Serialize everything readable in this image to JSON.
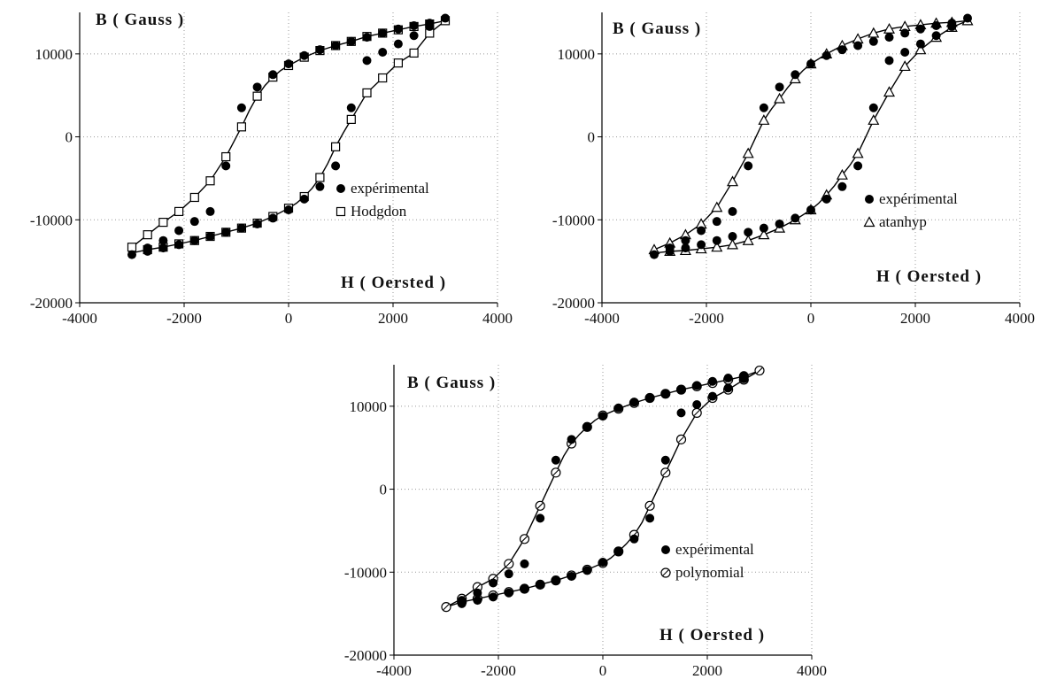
{
  "chart_data": [
    {
      "type": "scatter",
      "xlabel": "H ( Oersted )",
      "ylabel": "B ( Gauss )",
      "xlim": [
        -4000,
        4000
      ],
      "ylim": [
        -20000,
        15000
      ],
      "xticks": [
        -4000,
        -2000,
        0,
        2000,
        4000
      ],
      "yticks": [
        -20000,
        -10000,
        0,
        10000
      ],
      "tick_labels_x": [
        "-4000",
        "-2000",
        "0",
        "2000",
        "4000"
      ],
      "tick_labels_y": [
        "-20000",
        "-10000",
        "0",
        "10000"
      ],
      "grid": true,
      "legend_position": "center-right",
      "series": [
        {
          "name": "expérimental",
          "marker": "filled-circle",
          "x": [
            -3000,
            -2700,
            -2400,
            -2100,
            -1800,
            -1500,
            -1200,
            -900,
            -600,
            -300,
            0,
            300,
            600,
            900,
            1200,
            1500,
            1800,
            2100,
            2400,
            2700,
            3000,
            2700,
            2400,
            2100,
            1800,
            1500,
            1200,
            900,
            600,
            300,
            0,
            -300,
            -600,
            -900,
            -1200,
            -1500,
            -1800,
            -2100,
            -2400,
            -2700
          ],
          "y": [
            -14200,
            -13400,
            -12500,
            -11300,
            -10200,
            -9000,
            -3500,
            3500,
            6000,
            7500,
            8800,
            9800,
            10500,
            11000,
            11500,
            12000,
            12500,
            13000,
            13400,
            13700,
            14300,
            13300,
            12200,
            11200,
            10200,
            9200,
            3500,
            -3500,
            -6000,
            -7500,
            -8800,
            -9800,
            -10500,
            -11000,
            -11500,
            -12000,
            -12500,
            -13000,
            -13400,
            -13800
          ]
        },
        {
          "name": "Hodgdon",
          "marker": "open-square",
          "x": [
            -3000,
            -2700,
            -2400,
            -2100,
            -1800,
            -1500,
            -1200,
            -900,
            -600,
            -300,
            0,
            300,
            600,
            900,
            1200,
            1500,
            1800,
            2100,
            2400,
            2700,
            3000,
            2700,
            2400,
            2100,
            1800,
            1500,
            1200,
            900,
            600,
            300,
            0,
            -300,
            -600,
            -900,
            -1200,
            -1500,
            -1800,
            -2100,
            -2400,
            -2700
          ],
          "y": [
            -13300,
            -11800,
            -10300,
            -9000,
            -7300,
            -5300,
            -2400,
            1200,
            4900,
            7200,
            8600,
            9600,
            10400,
            11000,
            11500,
            12100,
            12500,
            12900,
            13300,
            13600,
            14000,
            12500,
            10100,
            8900,
            7100,
            5300,
            2100,
            -1200,
            -4900,
            -7200,
            -8600,
            -9600,
            -10400,
            -11000,
            -11500,
            -12000,
            -12500,
            -12900,
            -13300,
            -13600
          ]
        }
      ],
      "curves": [
        {
          "x": [
            -3000,
            -2700,
            -2400,
            -2100,
            -1800,
            -1500,
            -1200,
            -1050,
            -900,
            -750,
            -600,
            -450,
            -300,
            -150,
            0,
            300,
            600,
            900,
            1200,
            1500,
            1800,
            2100,
            2400,
            2700,
            3000
          ],
          "y": [
            -13300,
            -11800,
            -10300,
            -9000,
            -7300,
            -5300,
            -2400,
            -600,
            1200,
            3200,
            4900,
            6200,
            7200,
            8000,
            8600,
            9600,
            10400,
            11000,
            11500,
            12100,
            12500,
            12900,
            13300,
            13600,
            14000
          ]
        },
        {
          "x": [
            3000,
            2700,
            2400,
            2100,
            1800,
            1500,
            1200,
            1050,
            900,
            750,
            600,
            450,
            300,
            150,
            0,
            -300,
            -600,
            -900,
            -1200,
            -1500,
            -1800,
            -2100,
            -2400,
            -2700,
            -3000
          ],
          "y": [
            14000,
            12500,
            10100,
            8900,
            7100,
            5300,
            2100,
            500,
            -1200,
            -3200,
            -4900,
            -6200,
            -7200,
            -8000,
            -8600,
            -9600,
            -10400,
            -11000,
            -11500,
            -12000,
            -12500,
            -12900,
            -13300,
            -13600,
            -14000
          ]
        }
      ],
      "legend": [
        "expérimental",
        "Hodgdon"
      ]
    },
    {
      "type": "scatter",
      "xlabel": "H ( Oersted )",
      "ylabel": "B ( Gauss )",
      "xlim": [
        -4000,
        4000
      ],
      "ylim": [
        -20000,
        15000
      ],
      "xticks": [
        -4000,
        -2000,
        0,
        2000,
        4000
      ],
      "yticks": [
        -20000,
        -10000,
        0,
        10000
      ],
      "tick_labels_x": [
        "-4000",
        "-2000",
        "0",
        "2000",
        "4000"
      ],
      "tick_labels_y": [
        "-20000",
        "-10000",
        "0",
        "10000"
      ],
      "grid": true,
      "legend_position": "center-right",
      "series": [
        {
          "name": "expérimental",
          "marker": "filled-circle",
          "x": [
            -3000,
            -2700,
            -2400,
            -2100,
            -1800,
            -1500,
            -1200,
            -900,
            -600,
            -300,
            0,
            300,
            600,
            900,
            1200,
            1500,
            1800,
            2100,
            2400,
            2700,
            3000,
            2700,
            2400,
            2100,
            1800,
            1500,
            1200,
            900,
            600,
            300,
            0,
            -300,
            -600,
            -900,
            -1200,
            -1500,
            -1800,
            -2100,
            -2400,
            -2700
          ],
          "y": [
            -14200,
            -13400,
            -12500,
            -11300,
            -10200,
            -9000,
            -3500,
            3500,
            6000,
            7500,
            8800,
            9800,
            10500,
            11000,
            11500,
            12000,
            12500,
            13000,
            13400,
            13700,
            14300,
            13300,
            12200,
            11200,
            10200,
            9200,
            3500,
            -3500,
            -6000,
            -7500,
            -8800,
            -9800,
            -10500,
            -11000,
            -11500,
            -12000,
            -12500,
            -13000,
            -13400,
            -13800
          ]
        },
        {
          "name": "atanhyp",
          "marker": "open-triangle",
          "x": [
            -3000,
            -2700,
            -2400,
            -2100,
            -1800,
            -1500,
            -1200,
            -900,
            -600,
            -300,
            0,
            300,
            600,
            900,
            1200,
            1500,
            1800,
            2100,
            2400,
            2700,
            3000,
            2700,
            2400,
            2100,
            1800,
            1500,
            1200,
            900,
            600,
            300,
            0,
            -300,
            -600,
            -900,
            -1200,
            -1500,
            -1800,
            -2100,
            -2400,
            -2700
          ],
          "y": [
            -13600,
            -12800,
            -11800,
            -10500,
            -8500,
            -5400,
            -2000,
            2000,
            4600,
            7000,
            8800,
            10000,
            11000,
            11800,
            12500,
            13000,
            13300,
            13500,
            13700,
            13800,
            14000,
            13200,
            12000,
            10500,
            8500,
            5400,
            2000,
            -2000,
            -4600,
            -7000,
            -8800,
            -10000,
            -11000,
            -11800,
            -12500,
            -13000,
            -13300,
            -13500,
            -13700,
            -13800
          ]
        }
      ],
      "curves": [
        {
          "x": [
            -3000,
            -2700,
            -2400,
            -2100,
            -1800,
            -1500,
            -1200,
            -1050,
            -900,
            -750,
            -600,
            -450,
            -300,
            -150,
            0,
            300,
            600,
            900,
            1200,
            1500,
            1800,
            2100,
            2400,
            2700,
            3000
          ],
          "y": [
            -13600,
            -12800,
            -11800,
            -10500,
            -8500,
            -5400,
            -2000,
            0,
            2000,
            3400,
            4600,
            5900,
            7000,
            8000,
            8800,
            10000,
            11000,
            11800,
            12500,
            13000,
            13300,
            13500,
            13700,
            13800,
            14000
          ]
        },
        {
          "x": [
            3000,
            2700,
            2400,
            2100,
            1800,
            1500,
            1200,
            1050,
            900,
            750,
            600,
            450,
            300,
            150,
            0,
            -300,
            -600,
            -900,
            -1200,
            -1500,
            -1800,
            -2100,
            -2400,
            -2700,
            -3000
          ],
          "y": [
            14000,
            13200,
            12000,
            10500,
            8500,
            5400,
            2000,
            0,
            -2000,
            -3400,
            -4600,
            -5900,
            -7000,
            -8000,
            -8800,
            -10000,
            -11000,
            -11800,
            -12500,
            -13000,
            -13300,
            -13500,
            -13700,
            -13800,
            -14000
          ]
        }
      ],
      "legend": [
        "expérimental",
        "atanhyp"
      ]
    },
    {
      "type": "scatter",
      "xlabel": "H ( Oersted )",
      "ylabel": "B ( Gauss )",
      "xlim": [
        -4000,
        4000
      ],
      "ylim": [
        -20000,
        15000
      ],
      "xticks": [
        -4000,
        -2000,
        0,
        2000,
        4000
      ],
      "yticks": [
        -20000,
        -10000,
        0,
        10000
      ],
      "tick_labels_x": [
        "-4000",
        "-2000",
        "0",
        "2000",
        "4000"
      ],
      "tick_labels_y": [
        "-20000",
        "-10000",
        "0",
        "10000"
      ],
      "grid": true,
      "legend_position": "center-right",
      "series": [
        {
          "name": "expérimental",
          "marker": "filled-circle",
          "x": [
            -2700,
            -2400,
            -2100,
            -1800,
            -1500,
            -1200,
            -900,
            -600,
            -300,
            0,
            300,
            600,
            900,
            1200,
            1500,
            1800,
            2100,
            2400,
            2700,
            2700,
            2400,
            2100,
            1800,
            1500,
            1200,
            900,
            600,
            300,
            0,
            -300,
            -600,
            -900,
            -1200,
            -1500,
            -1800,
            -2100,
            -2400,
            -2700
          ],
          "y": [
            -13400,
            -12500,
            -11300,
            -10200,
            -9000,
            -3500,
            3500,
            6000,
            7500,
            8800,
            9800,
            10500,
            11000,
            11500,
            12000,
            12500,
            13000,
            13400,
            13700,
            13300,
            12200,
            11200,
            10200,
            9200,
            3500,
            -3500,
            -6000,
            -7500,
            -8800,
            -9800,
            -10500,
            -11000,
            -11500,
            -12000,
            -12500,
            -13000,
            -13400,
            -13800
          ]
        },
        {
          "name": "polynomial",
          "marker": "open-circle-slash",
          "x": [
            -3000,
            -2700,
            -2400,
            -2100,
            -1800,
            -1500,
            -1200,
            -900,
            -600,
            -300,
            0,
            300,
            600,
            900,
            1200,
            1500,
            1800,
            2100,
            2400,
            2700,
            3000,
            2700,
            2400,
            2100,
            1800,
            1500,
            1200,
            900,
            600,
            300,
            0,
            -300,
            -600,
            -900,
            -1200,
            -1500,
            -1800,
            -2100,
            -2400,
            -2700
          ],
          "y": [
            -14200,
            -13200,
            -11800,
            -10800,
            -9000,
            -6000,
            -2000,
            2000,
            5500,
            7500,
            8900,
            9700,
            10400,
            11000,
            11500,
            12000,
            12400,
            12800,
            13200,
            13600,
            14300,
            13200,
            12000,
            11000,
            9200,
            6000,
            2000,
            -2000,
            -5500,
            -7500,
            -8900,
            -9700,
            -10400,
            -11000,
            -11500,
            -12000,
            -12400,
            -12800,
            -13200,
            -13600
          ]
        }
      ],
      "curves": [
        {
          "x": [
            -3000,
            -2700,
            -2400,
            -2100,
            -1800,
            -1500,
            -1200,
            -1050,
            -900,
            -750,
            -600,
            -450,
            -300,
            -150,
            0,
            300,
            600,
            900,
            1200,
            1500,
            1800,
            2100,
            2400,
            2700,
            3000
          ],
          "y": [
            -14200,
            -13200,
            -11800,
            -10800,
            -9000,
            -6000,
            -2000,
            0,
            2000,
            4000,
            5500,
            6600,
            7500,
            8300,
            8900,
            9700,
            10400,
            11000,
            11500,
            12000,
            12400,
            12800,
            13200,
            13600,
            14300
          ]
        },
        {
          "x": [
            3000,
            2700,
            2400,
            2100,
            1800,
            1500,
            1200,
            1050,
            900,
            750,
            600,
            450,
            300,
            150,
            0,
            -300,
            -600,
            -900,
            -1200,
            -1500,
            -1800,
            -2100,
            -2400,
            -2700,
            -3000
          ],
          "y": [
            14300,
            13200,
            12000,
            11000,
            9200,
            6000,
            2000,
            0,
            -2000,
            -4000,
            -5500,
            -6600,
            -7500,
            -8300,
            -8900,
            -9700,
            -10400,
            -11000,
            -11500,
            -12000,
            -12400,
            -12800,
            -13200,
            -13600,
            -14200
          ]
        }
      ],
      "legend": [
        "expérimental",
        "polynomial"
      ]
    }
  ]
}
